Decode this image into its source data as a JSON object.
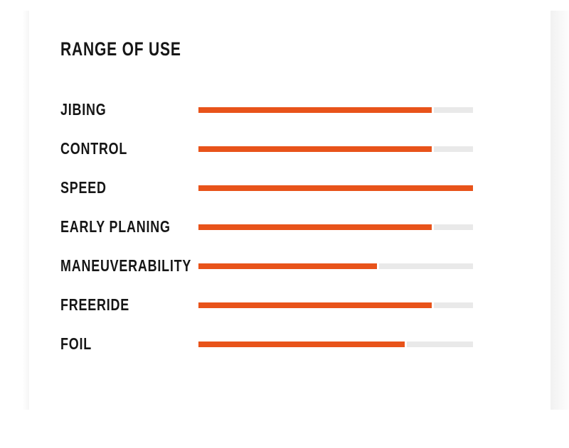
{
  "section": {
    "title": "RANGE OF USE"
  },
  "chart_data": {
    "type": "bar",
    "orientation": "horizontal",
    "title": "RANGE OF USE",
    "categories": [
      "JIBING",
      "CONTROL",
      "SPEED",
      "EARLY PLANING",
      "MANEUVERABILITY",
      "FREERIDE",
      "FOIL"
    ],
    "values": [
      85,
      85,
      100,
      85,
      65,
      85,
      75
    ],
    "value_unit": "percent",
    "xlim": [
      0,
      100
    ],
    "grid": false,
    "legend": false,
    "bar_color": "#e8531a",
    "track_color": "#e9e9e9"
  },
  "colors": {
    "accent": "#e8531a",
    "track": "#e9e9e9",
    "text": "#161616",
    "background": "#ffffff",
    "edge_shadow": "#f1f1f1"
  }
}
